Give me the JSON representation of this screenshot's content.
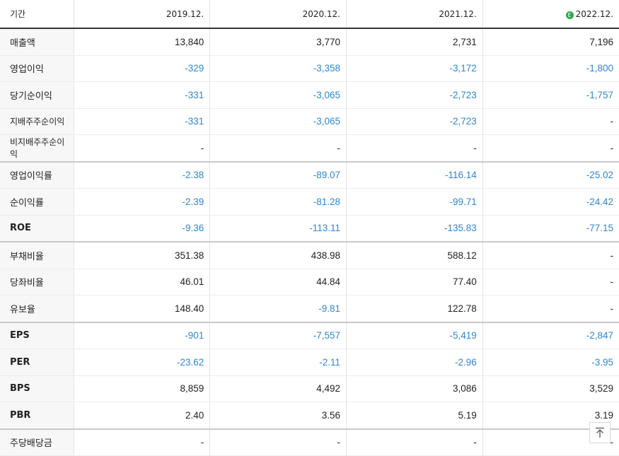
{
  "header": {
    "period_label": "기간",
    "periods": [
      "2019.12.",
      "2020.12.",
      "2021.12.",
      "2022.12."
    ],
    "estimate_icon": "E",
    "estimate_icon_color": "#2aa84a"
  },
  "colors": {
    "negative": "#2f86d1",
    "text": "#222222"
  },
  "rows": [
    {
      "label": "매출액",
      "values": [
        "13,840",
        "3,770",
        "2,731",
        "7,196"
      ]
    },
    {
      "label": "영업이익",
      "values": [
        "-329",
        "-3,358",
        "-3,172",
        "-1,800"
      ]
    },
    {
      "label": "당기순이익",
      "values": [
        "-331",
        "-3,065",
        "-2,723",
        "-1,757"
      ]
    },
    {
      "label": "지배주주순이익",
      "values": [
        "-331",
        "-3,065",
        "-2,723",
        "-"
      ]
    },
    {
      "label": "비지배주주순이익",
      "values": [
        "-",
        "-",
        "-",
        "-"
      ]
    },
    {
      "label": "영업이익률",
      "values": [
        "-2.38",
        "-89.07",
        "-116.14",
        "-25.02"
      ]
    },
    {
      "label": "순이익률",
      "values": [
        "-2.39",
        "-81.28",
        "-99.71",
        "-24.42"
      ]
    },
    {
      "label": "ROE",
      "values": [
        "-9.36",
        "-113.11",
        "-135.83",
        "-77.15"
      ]
    },
    {
      "label": "부채비율",
      "values": [
        "351.38",
        "438.98",
        "588.12",
        "-"
      ]
    },
    {
      "label": "당좌비율",
      "values": [
        "46.01",
        "44.84",
        "77.40",
        "-"
      ]
    },
    {
      "label": "유보율",
      "values": [
        "148.40",
        "-9.81",
        "122.78",
        "-"
      ]
    },
    {
      "label": "EPS",
      "values": [
        "-901",
        "-7,557",
        "-5,419",
        "-2,847"
      ]
    },
    {
      "label": "PER",
      "values": [
        "-23.62",
        "-2.11",
        "-2.96",
        "-3.95"
      ]
    },
    {
      "label": "BPS",
      "values": [
        "8,859",
        "4,492",
        "3,086",
        "3,529"
      ]
    },
    {
      "label": "PBR",
      "values": [
        "2.40",
        "3.56",
        "5.19",
        "3.19"
      ]
    },
    {
      "label": "주당배당금",
      "values": [
        "-",
        "-",
        "-",
        "-"
      ]
    }
  ],
  "scroll_top_icon": "arrow-up-to-top-icon"
}
